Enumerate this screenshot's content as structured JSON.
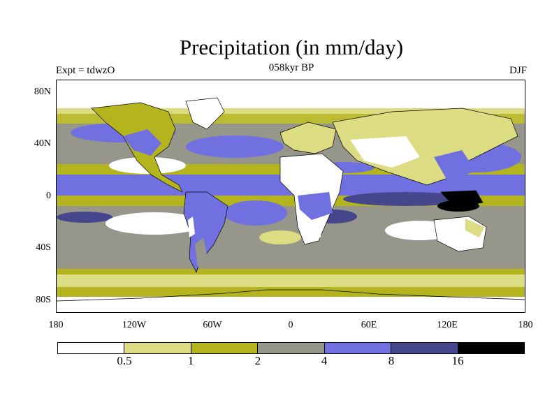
{
  "title": "Precipitation (in mm/day)",
  "experiment_label": "Expt = tdwzO",
  "period_label": "058kyr BP",
  "season_label": "DJF",
  "y_axis_labels": [
    "80N",
    "40N",
    "0",
    "40S",
    "80S"
  ],
  "x_axis_labels": [
    "180",
    "120W",
    "60W",
    "0",
    "60E",
    "120E",
    "180"
  ],
  "colorbar": {
    "colors": [
      "#ffffff",
      "#dcdc82",
      "#b4b41e",
      "#96968a",
      "#7070e0",
      "#46468c",
      "#000000"
    ],
    "tick_labels": [
      "0.5",
      "1",
      "2",
      "4",
      "8",
      "16"
    ]
  },
  "colors": {
    "dry": "#ffffff",
    "light_yellow": "#dcdc82",
    "olive": "#b4b41e",
    "gray": "#96968a",
    "blue": "#7070e0",
    "dark_blue": "#46468c",
    "black": "#000000",
    "coastline": "#000000"
  }
}
